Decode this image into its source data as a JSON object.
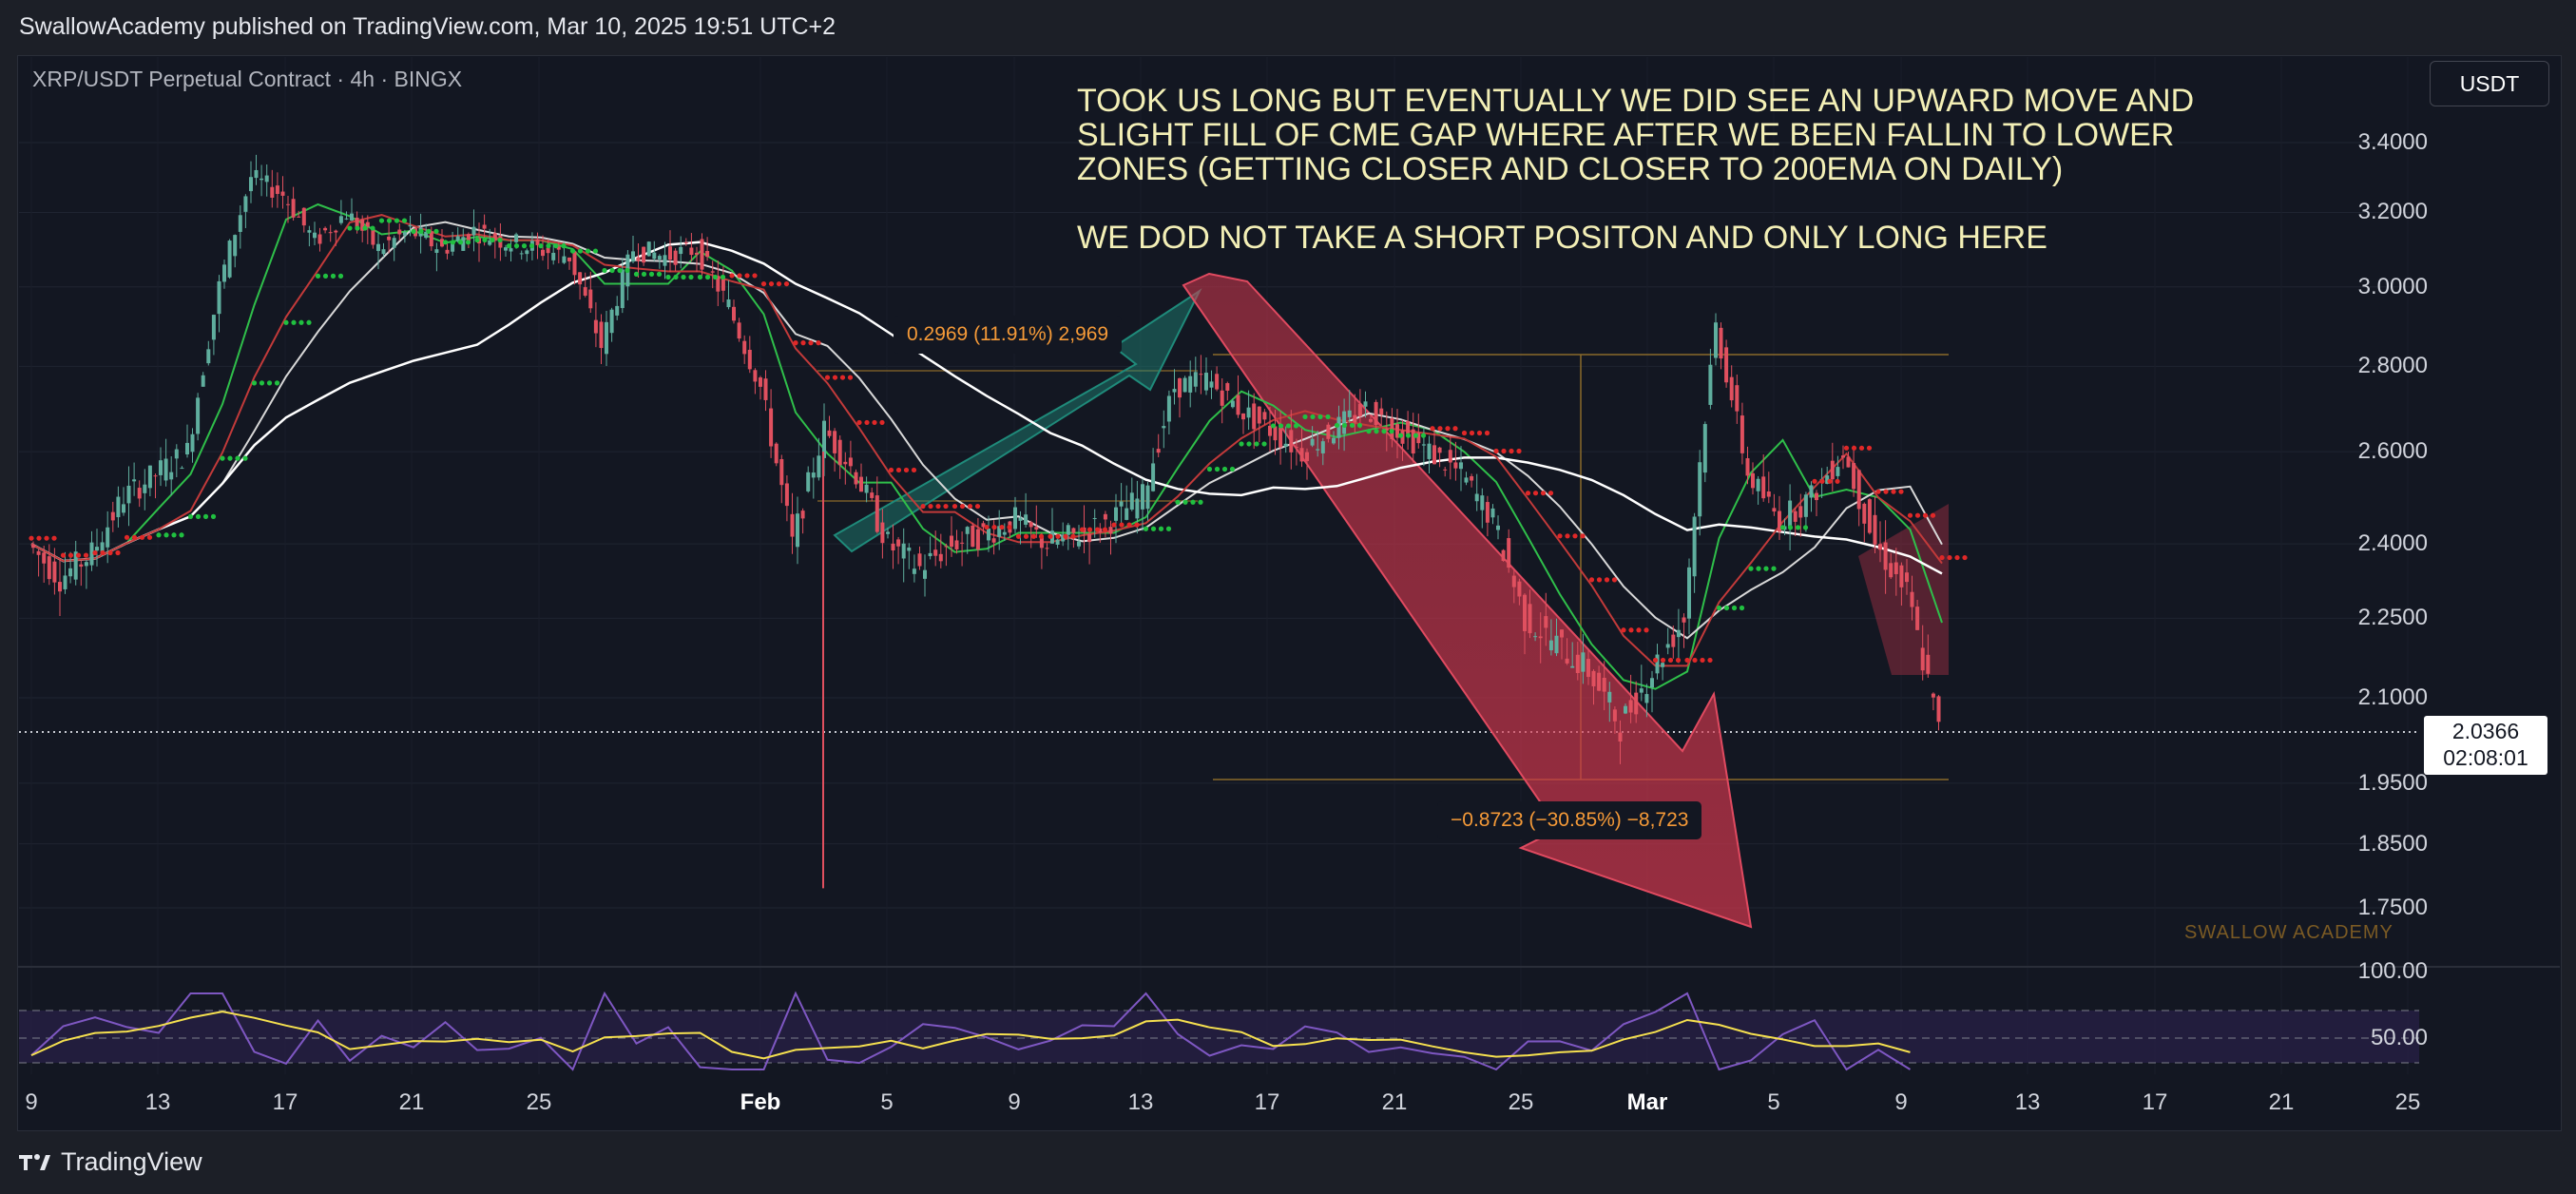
{
  "header": {
    "published": "SwallowAcademy published on TradingView.com, Mar 10, 2025 19:51 UTC+2"
  },
  "chart": {
    "symbol": "XRP/USDT Perpetual Contract · 4h · BINGX",
    "currency_button": "USDT",
    "annotation": "TOOK US LONG BUT EVENTUALLY WE DID SEE AN UPWARD MOVE AND\nSLIGHT FILL OF CME GAP WHERE AFTER WE BEEN FALLIN TO LOWER\nZONES (GETTING CLOSER AND CLOSER TO 200EMA ON DAILY)\n\nWE DOD NOT TAKE A SHORT POSITON AND ONLY LONG HERE",
    "measure_up": "0.2969 (11.91%) 2,969",
    "measure_down": "−0.8723 (−30.85%) −8,723",
    "watermark": "SWALLOW ACADEMY",
    "price_tag_value": "2.0366",
    "price_tag_countdown": "02:08:01"
  },
  "footer": {
    "brand": "TradingView"
  },
  "colors": {
    "background": "#131722",
    "up_candle": "#5fae9e",
    "down_candle": "#e0505f",
    "green_arrow": "#1f8a7a",
    "red_arrow": "#d2374d",
    "annotation": "#f3efb6",
    "measure_label": "#f59a38",
    "rsi_line": "#7e57c2",
    "rsi_signal": "#f5e04f"
  },
  "chart_data": {
    "type": "candlestick",
    "timeframe": "4h",
    "y_axis": {
      "ticks": [
        1.75,
        1.85,
        1.95,
        2.1,
        2.25,
        2.4,
        2.6,
        2.8,
        3.0,
        3.2,
        3.4
      ],
      "tick_labels": [
        "1.7500",
        "1.8500",
        "1.9500",
        "2.1000",
        "2.2500",
        "2.4000",
        "2.6000",
        "2.8000",
        "3.0000",
        "3.2000",
        "3.4000"
      ],
      "scale": "log"
    },
    "x_axis": {
      "tick_labels": [
        "9",
        "13",
        "17",
        "21",
        "25",
        "Feb",
        "5",
        "9",
        "13",
        "17",
        "21",
        "25",
        "Mar",
        "5",
        "9",
        "13",
        "17",
        "21",
        "25"
      ]
    },
    "last_price": 2.0366,
    "close_path": [
      [
        "Jan 9",
        2.4
      ],
      [
        "Jan 10",
        2.33
      ],
      [
        "Jan 11",
        2.38
      ],
      [
        "Jan 12",
        2.5
      ],
      [
        "Jan 13",
        2.55
      ],
      [
        "Jan 14",
        2.6
      ],
      [
        "Jan 15",
        3.0
      ],
      [
        "Jan 16",
        3.3
      ],
      [
        "Jan 17",
        3.25
      ],
      [
        "Jan 18",
        3.12
      ],
      [
        "Jan 19",
        3.2
      ],
      [
        "Jan 20",
        3.1
      ],
      [
        "Jan 21",
        3.15
      ],
      [
        "Jan 22",
        3.1
      ],
      [
        "Jan 23",
        3.15
      ],
      [
        "Jan 24",
        3.12
      ],
      [
        "Jan 25",
        3.1
      ],
      [
        "Jan 26",
        3.08
      ],
      [
        "Jan 27",
        2.85
      ],
      [
        "Jan 28",
        3.1
      ],
      [
        "Jan 29",
        3.08
      ],
      [
        "Jan 30",
        3.1
      ],
      [
        "Jan 31",
        2.95
      ],
      [
        "Feb 1",
        2.75
      ],
      [
        "Feb 2",
        2.4
      ],
      [
        "Feb 3",
        2.65
      ],
      [
        "Feb 4",
        2.55
      ],
      [
        "Feb 5",
        2.4
      ],
      [
        "Feb 6",
        2.35
      ],
      [
        "Feb 7",
        2.4
      ],
      [
        "Feb 8",
        2.42
      ],
      [
        "Feb 9",
        2.45
      ],
      [
        "Feb 10",
        2.4
      ],
      [
        "Feb 11",
        2.42
      ],
      [
        "Feb 12",
        2.45
      ],
      [
        "Feb 13",
        2.5
      ],
      [
        "Feb 14",
        2.75
      ],
      [
        "Feb 15",
        2.77
      ],
      [
        "Feb 16",
        2.7
      ],
      [
        "Feb 17",
        2.65
      ],
      [
        "Feb 18",
        2.6
      ],
      [
        "Feb 19",
        2.65
      ],
      [
        "Feb 20",
        2.7
      ],
      [
        "Feb 21",
        2.65
      ],
      [
        "Feb 22",
        2.6
      ],
      [
        "Feb 23",
        2.55
      ],
      [
        "Feb 24",
        2.45
      ],
      [
        "Feb 25",
        2.25
      ],
      [
        "Feb 26",
        2.2
      ],
      [
        "Feb 27",
        2.15
      ],
      [
        "Feb 28",
        2.05
      ],
      [
        "Mar 1",
        2.15
      ],
      [
        "Mar 2",
        2.25
      ],
      [
        "Mar 3",
        2.9
      ],
      [
        "Mar 4",
        2.55
      ],
      [
        "Mar 5",
        2.45
      ],
      [
        "Mar 6",
        2.5
      ],
      [
        "Mar 7",
        2.6
      ],
      [
        "Mar 8",
        2.4
      ],
      [
        "Mar 9",
        2.3
      ],
      [
        "Mar 10",
        2.04
      ]
    ],
    "measurements": [
      {
        "label": "0.2969 (11.91%) 2,969"
      },
      {
        "label": "−0.8723 (−30.85%) −8,723"
      }
    ],
    "rsi": {
      "levels": [
        50.0,
        100.0
      ],
      "tick_labels": [
        "100.00",
        "50.00"
      ]
    }
  }
}
